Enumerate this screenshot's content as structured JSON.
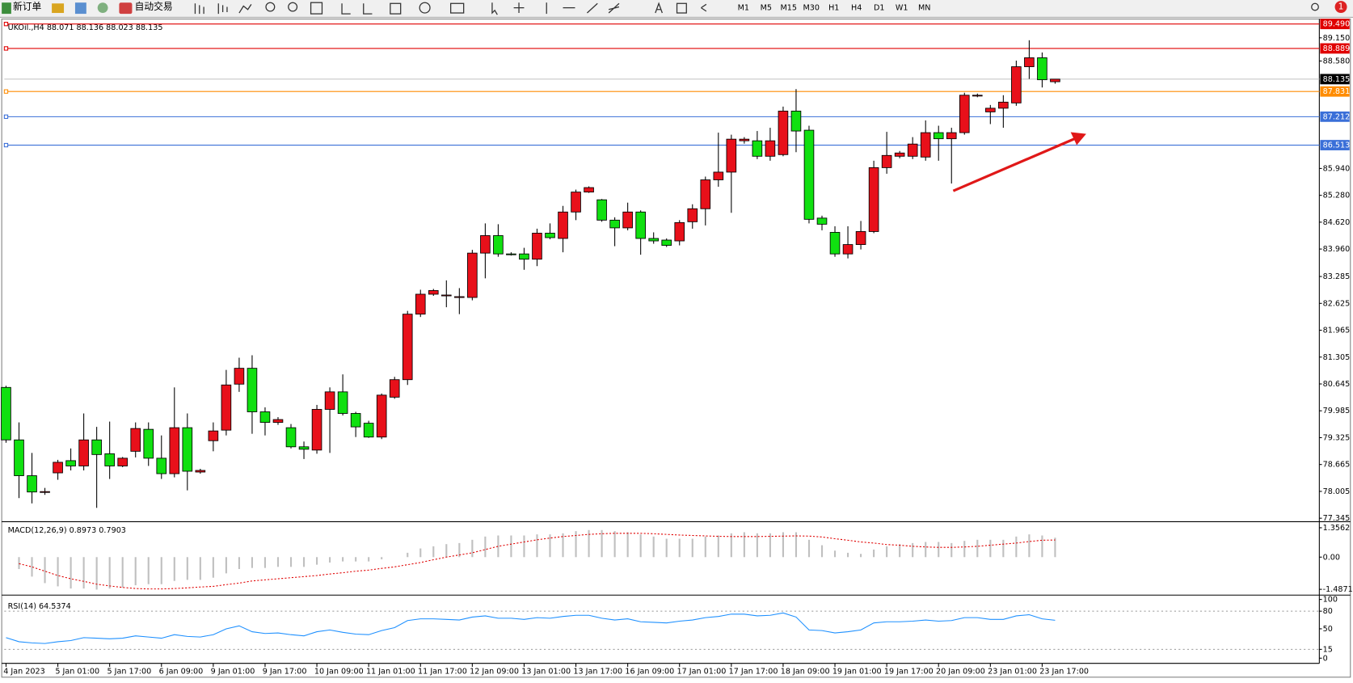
{
  "toolbar": {
    "new_order": "新订单",
    "auto_trading": "自动交易",
    "timeframes": [
      "M1",
      "M5",
      "M15",
      "M30",
      "H1",
      "H4",
      "D1",
      "W1",
      "MN"
    ],
    "notifications": "1"
  },
  "chart_data": [
    {
      "type": "candlestick",
      "title": "UKOil.,H4  88.071 88.136 88.023 88.135",
      "categories": [
        "4 Jan 2023",
        null,
        null,
        null,
        "5 Jan 01:00",
        null,
        null,
        null,
        "5 Jan 17:00",
        null,
        null,
        null,
        "6 Jan 09:00",
        null,
        null,
        null,
        "9 Jan 01:00",
        null,
        null,
        null,
        "9 Jan 17:00",
        null,
        null,
        null,
        "10 Jan 09:00",
        null,
        null,
        null,
        "11 Jan 01:00",
        null,
        null,
        null,
        "11 Jan 17:00",
        null,
        null,
        null,
        "12 Jan 09:00",
        null,
        null,
        null,
        "13 Jan 01:00",
        null,
        null,
        null,
        "13 Jan 17:00",
        null,
        null,
        null,
        "16 Jan 09:00",
        null,
        null,
        null,
        "17 Jan 01:00",
        null,
        null,
        null,
        "17 Jan 17:00",
        null,
        null,
        null,
        "18 Jan 09:00",
        null,
        null,
        null,
        "19 Jan 01:00",
        null,
        null,
        null,
        "19 Jan 17:00",
        null,
        null,
        null,
        "20 Jan 09:00",
        null,
        null,
        null,
        "23 Jan 01:00",
        null,
        null,
        null,
        "23 Jan 17:00",
        null
      ],
      "open": [
        80.56,
        79.27,
        78.39,
        77.99,
        78.46,
        78.76,
        78.63,
        79.27,
        78.93,
        78.63,
        78.99,
        79.53,
        78.82,
        78.44,
        79.57,
        78.48,
        79.25,
        79.51,
        80.64,
        81.03,
        79.96,
        79.7,
        79.57,
        79.1,
        79.02,
        80.02,
        80.45,
        79.92,
        79.68,
        79.34,
        80.32,
        80.75,
        82.36,
        82.85,
        82.81,
        82.77,
        82.77,
        83.86,
        84.29,
        83.84,
        83.84,
        83.71,
        84.35,
        84.22,
        84.87,
        85.36,
        85.17,
        84.67,
        84.48,
        84.87,
        84.22,
        84.18,
        84.16,
        84.63,
        84.95,
        85.66,
        85.85,
        86.62,
        86.62,
        86.24,
        86.28,
        87.35,
        86.88,
        84.72,
        84.37,
        83.84,
        84.07,
        84.39,
        85.96,
        86.24,
        86.24,
        86.22,
        86.82,
        86.67,
        86.82,
        87.72,
        87.33,
        87.42,
        87.55,
        88.44,
        88.66,
        88.071
      ],
      "high": [
        80.6,
        79.7,
        78.95,
        78.09,
        78.78,
        79.06,
        79.92,
        79.59,
        79.72,
        78.85,
        79.7,
        79.7,
        79.38,
        80.56,
        79.92,
        78.56,
        79.7,
        80.99,
        81.29,
        81.35,
        80.07,
        79.83,
        79.66,
        79.23,
        80.13,
        80.56,
        80.88,
        79.96,
        79.74,
        80.41,
        80.82,
        82.44,
        82.96,
        82.98,
        83.19,
        83.0,
        83.94,
        84.59,
        84.57,
        83.88,
        83.99,
        84.46,
        84.59,
        85.02,
        85.42,
        85.5,
        85.19,
        84.74,
        85.1,
        84.91,
        84.37,
        84.22,
        84.67,
        85.06,
        85.74,
        86.82,
        86.77,
        86.71,
        86.86,
        86.94,
        87.46,
        87.89,
        86.99,
        84.78,
        84.52,
        84.52,
        84.65,
        86.13,
        86.84,
        86.37,
        86.71,
        87.12,
        86.99,
        86.94,
        87.8,
        87.78,
        87.5,
        87.74,
        88.59,
        89.09,
        88.79,
        88.136
      ],
      "low": [
        79.2,
        77.84,
        77.71,
        77.92,
        78.29,
        78.52,
        78.52,
        77.6,
        78.31,
        78.6,
        78.84,
        78.63,
        78.31,
        78.35,
        78.03,
        78.44,
        78.99,
        79.38,
        80.45,
        79.42,
        79.38,
        79.64,
        79.06,
        78.8,
        78.93,
        78.95,
        79.87,
        79.34,
        79.32,
        79.29,
        80.28,
        80.62,
        82.29,
        82.81,
        82.53,
        82.36,
        82.7,
        83.24,
        83.77,
        83.8,
        83.45,
        83.54,
        84.2,
        83.88,
        84.67,
        85.34,
        84.63,
        84.03,
        84.42,
        83.82,
        84.09,
        84.01,
        84.05,
        84.46,
        84.54,
        85.49,
        84.85,
        86.55,
        86.17,
        86.13,
        86.24,
        86.34,
        84.59,
        84.42,
        83.77,
        83.73,
        83.95,
        84.35,
        85.81,
        86.19,
        86.17,
        86.13,
        86.13,
        85.57,
        86.77,
        87.69,
        87.03,
        86.94,
        87.48,
        88.14,
        87.93,
        88.023
      ],
      "close": [
        79.27,
        78.39,
        77.99,
        78.0,
        78.72,
        78.63,
        79.27,
        78.91,
        78.63,
        78.82,
        79.55,
        78.82,
        78.44,
        79.57,
        78.5,
        78.52,
        79.49,
        80.62,
        81.03,
        79.96,
        79.7,
        79.77,
        79.1,
        79.04,
        80.02,
        80.45,
        79.92,
        79.59,
        79.34,
        80.37,
        80.75,
        82.36,
        82.85,
        82.94,
        82.83,
        82.79,
        83.86,
        84.29,
        83.84,
        83.82,
        83.71,
        84.35,
        84.24,
        84.87,
        85.36,
        85.47,
        84.67,
        84.48,
        84.87,
        84.22,
        84.16,
        84.05,
        84.61,
        84.95,
        85.66,
        85.85,
        86.66,
        86.66,
        86.24,
        86.62,
        87.35,
        86.86,
        84.69,
        84.57,
        83.84,
        84.07,
        84.39,
        85.96,
        86.26,
        86.32,
        86.54,
        86.82,
        86.67,
        86.82,
        87.74,
        87.74,
        87.42,
        87.57,
        88.44,
        88.66,
        88.12,
        88.135
      ],
      "up_color": "#e8101a",
      "down_color": "#10e010",
      "ylim": [
        77.281,
        89.57
      ],
      "yticks": [
        77.345,
        {
          "value": 78.005,
          "label": "78.005"
        },
        78.665,
        79.325,
        79.985,
        80.645,
        81.305,
        81.965,
        82.625,
        83.285,
        {
          "value": 83.96,
          "label": "83.960"
        },
        {
          "value": 84.62,
          "label": "84.620"
        },
        {
          "value": 85.28,
          "label": "85.280"
        },
        {
          "value": 85.94,
          "label": "85.940"
        },
        {
          "value": 88.58,
          "label": "88.580"
        },
        {
          "value": 89.15,
          "label": "89.150"
        }
      ],
      "levels": [
        {
          "value": 89.49,
          "label": "89.490",
          "color": "#e00000"
        },
        {
          "value": 88.889,
          "color": "#e00000"
        },
        {
          "value": 88.135,
          "color": "#c0c0c0",
          "label_color": "#000000"
        },
        {
          "value": 87.831,
          "color": "#ff8c00"
        },
        {
          "value": 87.212,
          "color": "#3a6fd8"
        },
        {
          "value": 86.513,
          "color": "#3a6fd8"
        }
      ]
    },
    {
      "type": "bar",
      "title": "MACD(12,26,9) 0.8973 0.7903",
      "color": "#c0c0c0",
      "values": [
        null,
        -0.55,
        -0.9,
        -1.2,
        -1.35,
        -1.45,
        -1.45,
        -1.5,
        -1.45,
        -1.4,
        -1.3,
        -1.25,
        -1.25,
        -1.1,
        -1.05,
        -1.05,
        -0.95,
        -0.75,
        -0.55,
        -0.5,
        -0.5,
        -0.45,
        -0.45,
        -0.45,
        -0.35,
        -0.25,
        -0.2,
        -0.2,
        -0.2,
        -0.1,
        0.0,
        0.2,
        0.4,
        0.5,
        0.6,
        0.65,
        0.8,
        0.95,
        1.0,
        1.0,
        1.0,
        1.05,
        1.05,
        1.1,
        1.2,
        1.25,
        1.25,
        1.2,
        1.15,
        1.05,
        0.95,
        0.85,
        0.85,
        0.85,
        0.95,
        1.0,
        1.1,
        1.15,
        1.1,
        1.1,
        1.15,
        1.15,
        0.8,
        0.55,
        0.3,
        0.2,
        0.15,
        0.35,
        0.5,
        0.6,
        0.65,
        0.7,
        0.7,
        0.65,
        0.75,
        0.8,
        0.8,
        0.8,
        0.95,
        1.05,
        1.0,
        0.8973
      ],
      "signal": {
        "color": "#e00000",
        "values": [
          null,
          -0.3,
          -0.45,
          -0.65,
          -0.85,
          -1.0,
          -1.12,
          -1.25,
          -1.33,
          -1.4,
          -1.45,
          -1.47,
          -1.47,
          -1.45,
          -1.42,
          -1.38,
          -1.35,
          -1.27,
          -1.2,
          -1.1,
          -1.05,
          -1.0,
          -0.95,
          -0.9,
          -0.85,
          -0.78,
          -0.72,
          -0.65,
          -0.6,
          -0.52,
          -0.45,
          -0.35,
          -0.25,
          -0.12,
          0.0,
          0.1,
          0.2,
          0.35,
          0.5,
          0.6,
          0.7,
          0.8,
          0.88,
          0.95,
          1.0,
          1.05,
          1.08,
          1.1,
          1.1,
          1.1,
          1.08,
          1.05,
          1.02,
          1.0,
          0.98,
          0.96,
          0.95,
          0.95,
          0.95,
          0.96,
          0.97,
          0.98,
          0.97,
          0.93,
          0.85,
          0.78,
          0.7,
          0.65,
          0.58,
          0.55,
          0.5,
          0.47,
          0.45,
          0.45,
          0.47,
          0.5,
          0.55,
          0.6,
          0.65,
          0.72,
          0.78,
          0.7903
        ]
      },
      "ylim": [
        -1.715,
        1.556
      ],
      "yticks": [
        1.3562,
        {
          "value": 0,
          "label": "0.00"
        },
        -1.4871
      ]
    },
    {
      "type": "line",
      "title": "RSI(14) 64.5374",
      "color": "#1e90ff",
      "values": [
        35,
        28,
        26,
        25,
        28,
        30,
        35,
        34,
        33,
        34,
        38,
        36,
        34,
        40,
        37,
        36,
        40,
        50,
        55,
        45,
        42,
        43,
        40,
        38,
        45,
        48,
        44,
        41,
        40,
        47,
        52,
        64,
        67,
        67,
        66,
        65,
        70,
        72,
        68,
        68,
        66,
        69,
        68,
        71,
        73,
        73,
        68,
        65,
        67,
        62,
        61,
        60,
        63,
        65,
        69,
        71,
        75,
        75,
        72,
        73,
        77,
        70,
        48,
        47,
        43,
        45,
        48,
        60,
        62,
        62,
        63,
        65,
        63,
        64,
        69,
        69,
        66,
        66,
        72,
        74,
        67,
        64.5374
      ],
      "ylim": [
        0,
        100
      ],
      "yticks": [
        100,
        80,
        50,
        15,
        0
      ],
      "levels": [
        80,
        15
      ]
    }
  ]
}
